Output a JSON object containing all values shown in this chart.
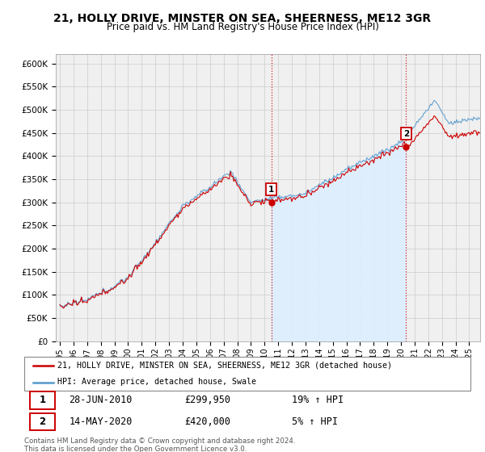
{
  "title": "21, HOLLY DRIVE, MINSTER ON SEA, SHEERNESS, ME12 3GR",
  "subtitle": "Price paid vs. HM Land Registry's House Price Index (HPI)",
  "ylim": [
    0,
    620000
  ],
  "yticks": [
    0,
    50000,
    100000,
    150000,
    200000,
    250000,
    300000,
    350000,
    400000,
    450000,
    500000,
    550000,
    600000
  ],
  "ytick_labels": [
    "£0",
    "£50K",
    "£100K",
    "£150K",
    "£200K",
    "£250K",
    "£300K",
    "£350K",
    "£400K",
    "£450K",
    "£500K",
    "£550K",
    "£600K"
  ],
  "line1_color": "#cc0000",
  "line2_color": "#5599cc",
  "fill_color": "#ddeeff",
  "annotation1_year": 2010.49,
  "annotation1_value": 299950,
  "annotation2_year": 2020.37,
  "annotation2_value": 420000,
  "legend_line1": "21, HOLLY DRIVE, MINSTER ON SEA, SHEERNESS, ME12 3GR (detached house)",
  "legend_line2": "HPI: Average price, detached house, Swale",
  "table_row1": [
    "1",
    "28-JUN-2010",
    "£299,950",
    "19% ↑ HPI"
  ],
  "table_row2": [
    "2",
    "14-MAY-2020",
    "£420,000",
    "5% ↑ HPI"
  ],
  "footnote": "Contains HM Land Registry data © Crown copyright and database right 2024.\nThis data is licensed under the Open Government Licence v3.0.",
  "bg_color": "#ffffff",
  "plot_bg_color": "#f0f0f0"
}
